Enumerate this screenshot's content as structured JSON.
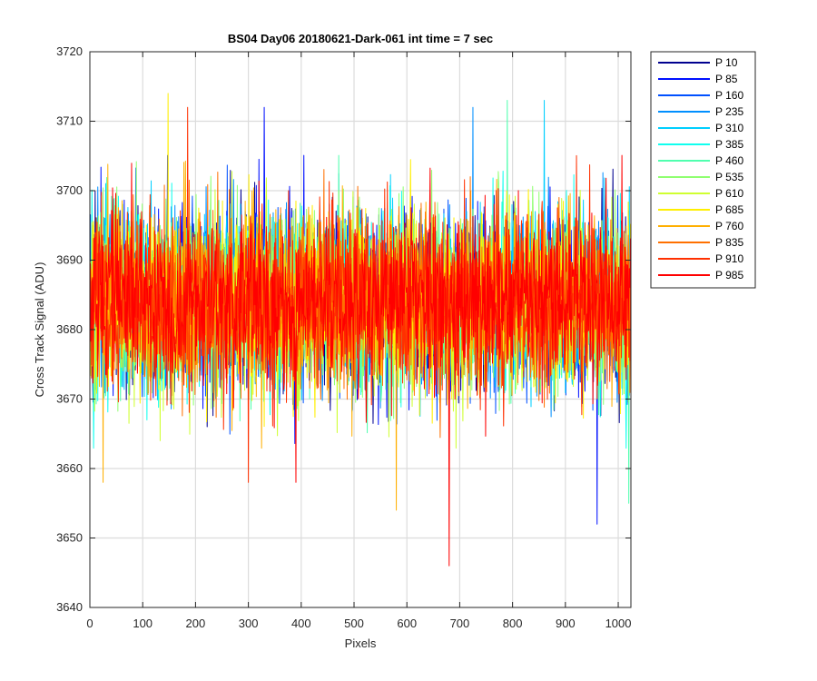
{
  "chart_data": {
    "type": "line",
    "title": "BS04 Day06 20180621-Dark-061 int time = 7 sec",
    "xlabel": "Pixels",
    "ylabel": "Cross Track Signal (ADU)",
    "xlim": [
      0,
      1024
    ],
    "ylim": [
      3640,
      3720
    ],
    "xticks": [
      0,
      100,
      200,
      300,
      400,
      500,
      600,
      700,
      800,
      900,
      1000
    ],
    "yticks": [
      3640,
      3650,
      3660,
      3670,
      3680,
      3690,
      3700,
      3710,
      3720
    ],
    "grid": true,
    "legend_position": "outside-top-right",
    "noise_profile": {
      "mean": 3684,
      "sigma": 6.2,
      "n_points": 1024
    },
    "notable_points": [
      {
        "series": "P 985",
        "x": 680,
        "y": 3646
      },
      {
        "series": "P 85",
        "x": 960,
        "y": 3652
      },
      {
        "series": "P 685",
        "x": 148,
        "y": 3714
      },
      {
        "series": "P 910",
        "x": 185,
        "y": 3712
      },
      {
        "series": "P 85",
        "x": 330,
        "y": 3712
      },
      {
        "series": "P 235",
        "x": 725,
        "y": 3712
      },
      {
        "series": "P 310",
        "x": 860,
        "y": 3713
      },
      {
        "series": "P 460",
        "x": 790,
        "y": 3713
      },
      {
        "series": "P 760",
        "x": 580,
        "y": 3654
      },
      {
        "series": "P 460",
        "x": 1020,
        "y": 3655
      },
      {
        "series": "P 760",
        "x": 25,
        "y": 3658
      },
      {
        "series": "P 910",
        "x": 300,
        "y": 3658
      },
      {
        "series": "P 985",
        "x": 390,
        "y": 3658
      }
    ],
    "series": [
      {
        "name": "P 10",
        "color": "#00008f"
      },
      {
        "name": "P 85",
        "color": "#0010ff"
      },
      {
        "name": "P 160",
        "color": "#0050ff"
      },
      {
        "name": "P 235",
        "color": "#008fff"
      },
      {
        "name": "P 310",
        "color": "#00cfff"
      },
      {
        "name": "P 385",
        "color": "#10ffef"
      },
      {
        "name": "P 460",
        "color": "#50ffaf"
      },
      {
        "name": "P 535",
        "color": "#8fff70"
      },
      {
        "name": "P 610",
        "color": "#cfff30"
      },
      {
        "name": "P 685",
        "color": "#ffef00"
      },
      {
        "name": "P 760",
        "color": "#ffaf00"
      },
      {
        "name": "P 835",
        "color": "#ff7000"
      },
      {
        "name": "P 910",
        "color": "#ff3000"
      },
      {
        "name": "P 985",
        "color": "#ff0000"
      }
    ]
  }
}
